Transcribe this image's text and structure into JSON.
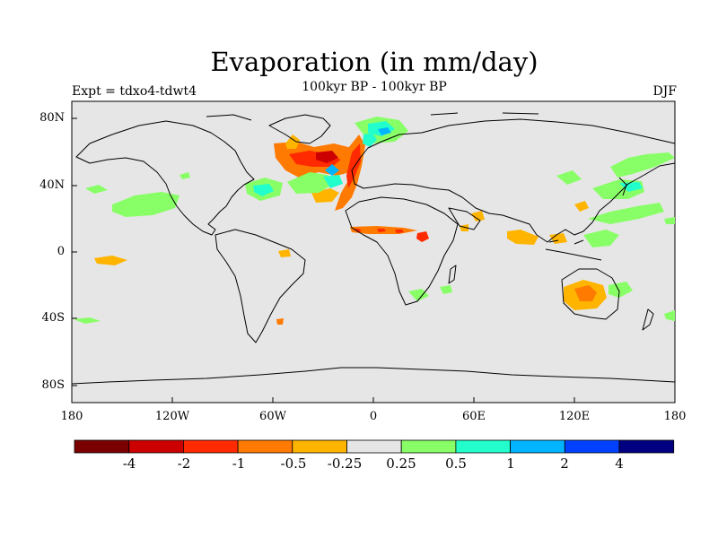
{
  "title": "Evaporation (in mm/day)",
  "subtitle": "100kyr BP - 100kyr BP",
  "left_label": "Expt = tdxo4-tdwt4",
  "right_label": "DJF",
  "axes": {
    "lat_ticks": [
      "80N",
      "40N",
      "0",
      "40S",
      "80S"
    ],
    "lon_ticks": [
      "180",
      "120W",
      "60W",
      "0",
      "60E",
      "120E",
      "180"
    ]
  },
  "colorbar": {
    "colors": [
      "#7a0000",
      "#cc0000",
      "#ff2a00",
      "#ff7a00",
      "#ffb400",
      "#e6e6e6",
      "#88ff66",
      "#22ffcc",
      "#00b4ff",
      "#0040ff",
      "#000080"
    ],
    "labels": [
      "-4",
      "-2",
      "-1",
      "-0.5",
      "-0.25",
      "0.25",
      "0.5",
      "1",
      "2",
      "4"
    ]
  },
  "colors": {
    "background": "#e6e6e6",
    "coast": "#000000"
  }
}
